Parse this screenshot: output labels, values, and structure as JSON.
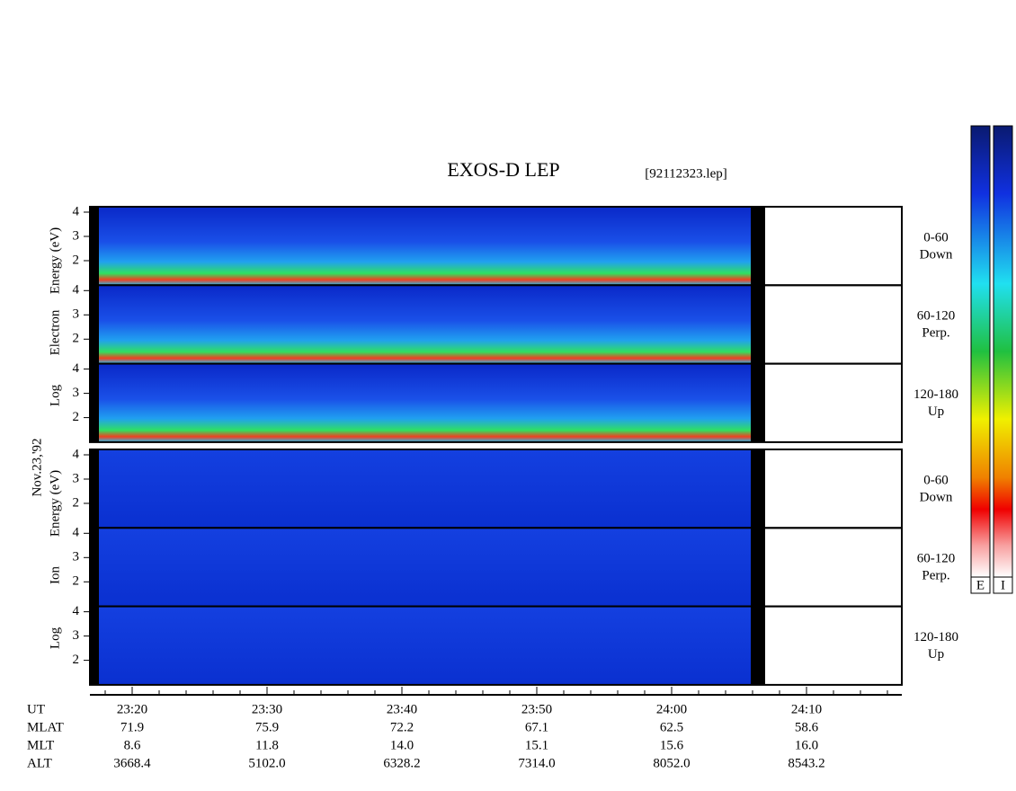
{
  "header": {
    "title": "EXOS-D LEP",
    "file": "[92112323.lep]"
  },
  "date": "Nov.23,'92",
  "blocks": [
    {
      "axis_label": [
        "Log",
        "Electron",
        "Energy (eV)"
      ],
      "yticks": [
        2,
        3,
        4
      ],
      "panels": [
        {
          "angle": "0-60",
          "direction": "Down"
        },
        {
          "angle": "60-120",
          "direction": "Perp."
        },
        {
          "angle": "120-180",
          "direction": "Up"
        }
      ]
    },
    {
      "axis_label": [
        "Log",
        "Ion",
        "Energy (eV)"
      ],
      "yticks": [
        2,
        3,
        4
      ],
      "panels": [
        {
          "angle": "0-60",
          "direction": "Down"
        },
        {
          "angle": "60-120",
          "direction": "Perp."
        },
        {
          "angle": "120-180",
          "direction": "Up"
        }
      ]
    }
  ],
  "time_axis": {
    "rows": [
      {
        "name": "UT",
        "values": [
          "23:20",
          "23:30",
          "23:40",
          "23:50",
          "24:00",
          "24:10"
        ]
      },
      {
        "name": "MLAT",
        "values": [
          "71.9",
          "75.9",
          "72.2",
          "67.1",
          "62.5",
          "58.6"
        ]
      },
      {
        "name": "MLT",
        "values": [
          "8.6",
          "11.8",
          "14.0",
          "15.1",
          "15.6",
          "16.0"
        ]
      },
      {
        "name": "ALT",
        "values": [
          "3668.4",
          "5102.0",
          "6328.2",
          "7314.0",
          "8052.0",
          "8543.2"
        ]
      }
    ]
  },
  "colorbars": [
    "E",
    "I"
  ]
}
